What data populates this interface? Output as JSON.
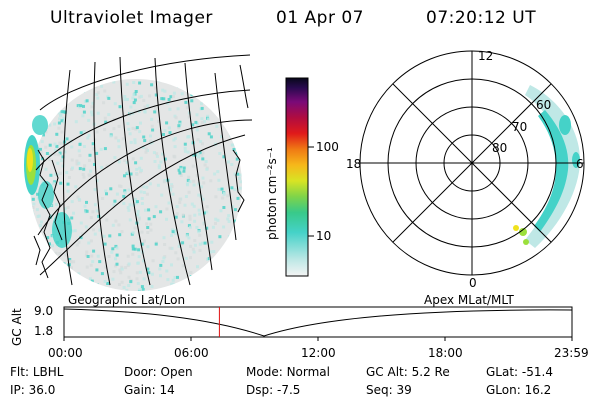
{
  "header": {
    "title": "Ultraviolet Imager",
    "date": "01 Apr 07",
    "time": "07:20:12 UT"
  },
  "colorbar": {
    "unit_label": "photon cm⁻²s⁻¹",
    "ticks": [
      "100",
      "10"
    ]
  },
  "polar_plot": {
    "lat_labels": [
      "80",
      "70",
      "60"
    ],
    "mlt_labels": {
      "top": "12",
      "left": "18",
      "right": "6",
      "bottom": "0"
    }
  },
  "strip": {
    "left_title": "Geographic Lat/Lon",
    "right_title": "Apex MLat/MLT",
    "axis_label": "GC Alt",
    "y_ticks": [
      "9.0",
      "1.8"
    ],
    "x_ticks": [
      "00:00",
      "06:00",
      "12:00",
      "18:00",
      "23:59"
    ],
    "marker_time": "07:20:12"
  },
  "status": {
    "row1": [
      {
        "label": "Flt:",
        "value": "LBHL"
      },
      {
        "label": "Door:",
        "value": "Open"
      },
      {
        "label": "Mode:",
        "value": "Normal"
      },
      {
        "label": "GC Alt:",
        "value": "5.2 Re"
      },
      {
        "label": "GLat:",
        "value": "-51.4"
      }
    ],
    "row2": [
      {
        "label": "IP:",
        "value": "36.0"
      },
      {
        "label": "Gain:",
        "value": "14"
      },
      {
        "label": "Dsp:",
        "value": "-7.5"
      },
      {
        "label": "Seq:",
        "value": "39"
      },
      {
        "label": "GLon:",
        "value": "16.2"
      }
    ]
  },
  "colors": {
    "aurora_cyan": "#45d2c8",
    "aurora_light": "#bfe8e6",
    "aurora_green": "#9be03c",
    "aurora_yellow": "#f0e21c",
    "marker_red": "#e01010"
  }
}
